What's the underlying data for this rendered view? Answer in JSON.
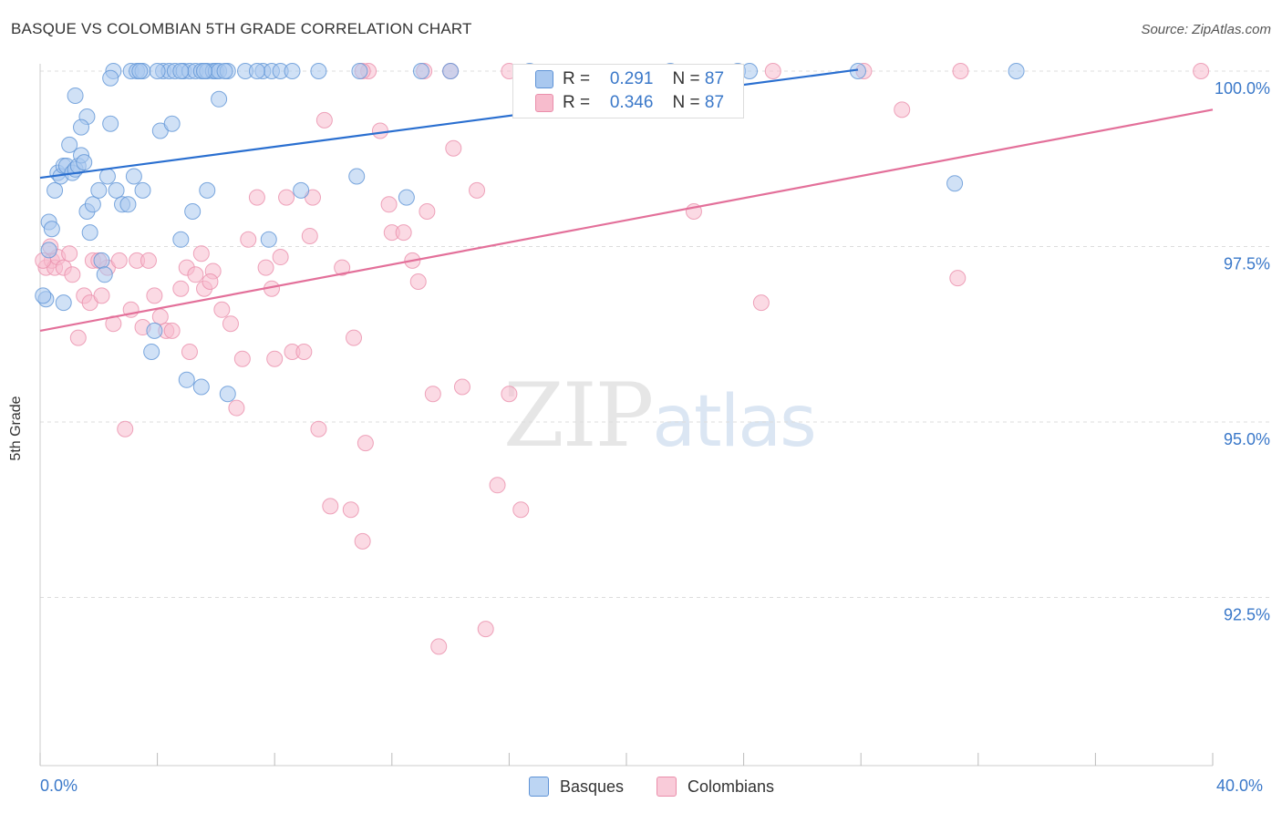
{
  "title": "BASQUE VS COLOMBIAN 5TH GRADE CORRELATION CHART",
  "source": "Source: ZipAtlas.com",
  "watermark": {
    "zip": "ZIP",
    "atlas": "atlas"
  },
  "legend": {
    "rows": [
      {
        "r_label": "R =",
        "r_value": "0.291",
        "n_label": "N =",
        "n_value": "87"
      },
      {
        "r_label": "R =",
        "r_value": "0.346",
        "n_label": "N =",
        "n_value": "87"
      }
    ]
  },
  "bottom_legend": [
    "Basques",
    "Colombians"
  ],
  "colors": {
    "basque_fill": "#a9c8ef",
    "basque_stroke": "#5e93d6",
    "basque_line": "#2a6fd0",
    "colombian_fill": "#f7bccd",
    "colombian_stroke": "#ea8eab",
    "colombian_line": "#e3709a",
    "tick_label": "#3a78c9",
    "grid": "#dddddd"
  },
  "chart_data": {
    "type": "scatter",
    "title": "BASQUE VS COLOMBIAN 5TH GRADE CORRELATION CHART",
    "xlabel": "",
    "ylabel": "5th Grade",
    "x_tick_labels": [
      "0.0%",
      "40.0%"
    ],
    "y_tick_labels": [
      "100.0%",
      "97.5%",
      "95.0%",
      "92.5%"
    ],
    "y_ticks": [
      100.0,
      97.5,
      95.0,
      92.5
    ],
    "xlim": [
      0,
      40
    ],
    "ylim": [
      90.8,
      100.2
    ],
    "grid": "horizontal dashed",
    "legend_position": "top-center",
    "series": [
      {
        "name": "Basques",
        "trend": {
          "x": [
            0,
            27.9
          ],
          "y": [
            98.48,
            100.02
          ]
        },
        "points": [
          [
            0.3,
            97.85
          ],
          [
            0.4,
            97.75
          ],
          [
            0.5,
            98.3
          ],
          [
            0.6,
            98.55
          ],
          [
            0.7,
            98.5
          ],
          [
            0.8,
            98.65
          ],
          [
            0.9,
            98.65
          ],
          [
            1.0,
            98.95
          ],
          [
            1.1,
            98.55
          ],
          [
            1.2,
            98.6
          ],
          [
            1.3,
            98.65
          ],
          [
            1.4,
            98.8
          ],
          [
            1.5,
            98.7
          ],
          [
            1.6,
            98.0
          ],
          [
            1.7,
            97.7
          ],
          [
            1.8,
            98.1
          ],
          [
            2.0,
            98.3
          ],
          [
            2.1,
            97.3
          ],
          [
            2.2,
            97.1
          ],
          [
            2.3,
            98.5
          ],
          [
            2.4,
            99.25
          ],
          [
            2.6,
            98.3
          ],
          [
            2.8,
            98.1
          ],
          [
            3.0,
            98.1
          ],
          [
            3.2,
            98.5
          ],
          [
            3.5,
            98.3
          ],
          [
            3.8,
            96.0
          ],
          [
            3.9,
            96.3
          ],
          [
            4.1,
            99.15
          ],
          [
            4.5,
            99.25
          ],
          [
            4.8,
            97.6
          ],
          [
            5.0,
            95.6
          ],
          [
            5.2,
            98.0
          ],
          [
            5.5,
            95.5
          ],
          [
            5.7,
            98.3
          ],
          [
            6.1,
            99.6
          ],
          [
            6.4,
            95.4
          ],
          [
            7.8,
            97.6
          ],
          [
            8.9,
            98.3
          ],
          [
            10.8,
            98.5
          ],
          [
            12.5,
            98.2
          ],
          [
            31.2,
            98.4
          ],
          [
            0.2,
            96.75
          ],
          [
            0.8,
            96.7
          ],
          [
            1.2,
            99.65
          ],
          [
            1.6,
            99.35
          ],
          [
            1.4,
            99.2
          ],
          [
            0.3,
            97.45
          ],
          [
            2.5,
            100.0
          ],
          [
            3.1,
            100.0
          ],
          [
            3.3,
            100.0
          ],
          [
            3.5,
            100.0
          ],
          [
            4.2,
            100.0
          ],
          [
            4.4,
            100.0
          ],
          [
            4.6,
            100.0
          ],
          [
            4.9,
            100.0
          ],
          [
            5.1,
            100.0
          ],
          [
            5.3,
            100.0
          ],
          [
            5.5,
            100.0
          ],
          [
            5.7,
            100.0
          ],
          [
            5.9,
            100.0
          ],
          [
            6.0,
            100.0
          ],
          [
            6.1,
            100.0
          ],
          [
            6.4,
            100.0
          ],
          [
            7.0,
            100.0
          ],
          [
            7.6,
            100.0
          ],
          [
            7.9,
            100.0
          ],
          [
            8.2,
            100.0
          ],
          [
            9.5,
            100.0
          ],
          [
            10.9,
            100.0
          ],
          [
            13.0,
            100.0
          ],
          [
            14.0,
            100.0
          ],
          [
            16.7,
            100.0
          ],
          [
            21.5,
            100.0
          ],
          [
            23.8,
            100.0
          ],
          [
            27.9,
            100.0
          ],
          [
            33.3,
            100.0
          ],
          [
            24.2,
            100.0
          ],
          [
            8.6,
            100.0
          ],
          [
            4.0,
            100.0
          ],
          [
            5.6,
            100.0
          ],
          [
            6.3,
            100.0
          ],
          [
            3.4,
            100.0
          ],
          [
            4.8,
            100.0
          ],
          [
            7.4,
            100.0
          ],
          [
            2.4,
            99.9
          ],
          [
            0.1,
            96.8
          ]
        ]
      },
      {
        "name": "Colombians",
        "trend": {
          "x": [
            0,
            40
          ],
          "y": [
            96.3,
            99.45
          ]
        },
        "points": [
          [
            0.2,
            97.2
          ],
          [
            0.4,
            97.3
          ],
          [
            0.5,
            97.2
          ],
          [
            0.6,
            97.35
          ],
          [
            0.8,
            97.2
          ],
          [
            1.0,
            97.4
          ],
          [
            1.3,
            96.2
          ],
          [
            1.5,
            96.8
          ],
          [
            1.7,
            96.7
          ],
          [
            1.8,
            97.3
          ],
          [
            2.1,
            96.8
          ],
          [
            2.3,
            97.2
          ],
          [
            2.5,
            96.4
          ],
          [
            2.7,
            97.3
          ],
          [
            2.9,
            94.9
          ],
          [
            3.1,
            96.6
          ],
          [
            3.3,
            97.3
          ],
          [
            3.5,
            96.35
          ],
          [
            3.7,
            97.3
          ],
          [
            3.9,
            96.8
          ],
          [
            4.1,
            96.5
          ],
          [
            4.3,
            96.3
          ],
          [
            4.5,
            96.3
          ],
          [
            4.8,
            96.9
          ],
          [
            5.0,
            97.2
          ],
          [
            5.1,
            96.0
          ],
          [
            5.3,
            97.1
          ],
          [
            5.5,
            97.4
          ],
          [
            5.6,
            96.9
          ],
          [
            5.9,
            97.15
          ],
          [
            6.2,
            96.6
          ],
          [
            6.5,
            96.4
          ],
          [
            6.7,
            95.2
          ],
          [
            6.9,
            95.9
          ],
          [
            7.1,
            97.6
          ],
          [
            7.4,
            98.2
          ],
          [
            7.7,
            97.2
          ],
          [
            7.9,
            96.9
          ],
          [
            8.0,
            95.9
          ],
          [
            8.2,
            97.35
          ],
          [
            8.4,
            98.2
          ],
          [
            8.6,
            96.0
          ],
          [
            9.0,
            96.0
          ],
          [
            9.2,
            97.65
          ],
          [
            9.3,
            98.2
          ],
          [
            9.5,
            94.9
          ],
          [
            9.7,
            99.3
          ],
          [
            9.9,
            93.8
          ],
          [
            10.3,
            97.2
          ],
          [
            10.6,
            93.75
          ],
          [
            10.7,
            96.2
          ],
          [
            11.0,
            93.3
          ],
          [
            11.1,
            94.7
          ],
          [
            11.6,
            99.15
          ],
          [
            11.9,
            98.1
          ],
          [
            12.0,
            97.7
          ],
          [
            12.4,
            97.7
          ],
          [
            12.7,
            97.3
          ],
          [
            12.9,
            97.0
          ],
          [
            13.2,
            98.0
          ],
          [
            13.4,
            95.4
          ],
          [
            13.6,
            91.8
          ],
          [
            14.1,
            98.9
          ],
          [
            14.4,
            95.5
          ],
          [
            14.9,
            98.3
          ],
          [
            15.2,
            92.05
          ],
          [
            15.6,
            94.1
          ],
          [
            16.0,
            95.4
          ],
          [
            16.4,
            93.75
          ],
          [
            22.3,
            98.0
          ],
          [
            24.6,
            96.7
          ],
          [
            29.4,
            99.45
          ],
          [
            31.3,
            97.05
          ],
          [
            28.1,
            100.0
          ],
          [
            31.4,
            100.0
          ],
          [
            39.6,
            100.0
          ],
          [
            16.0,
            100.0
          ],
          [
            13.1,
            100.0
          ],
          [
            11.2,
            100.0
          ],
          [
            25.0,
            100.0
          ],
          [
            11.0,
            100.0
          ],
          [
            14.0,
            100.0
          ],
          [
            0.1,
            97.3
          ],
          [
            0.35,
            97.5
          ],
          [
            1.1,
            97.1
          ],
          [
            2.0,
            97.3
          ],
          [
            5.8,
            97.0
          ]
        ]
      }
    ]
  }
}
